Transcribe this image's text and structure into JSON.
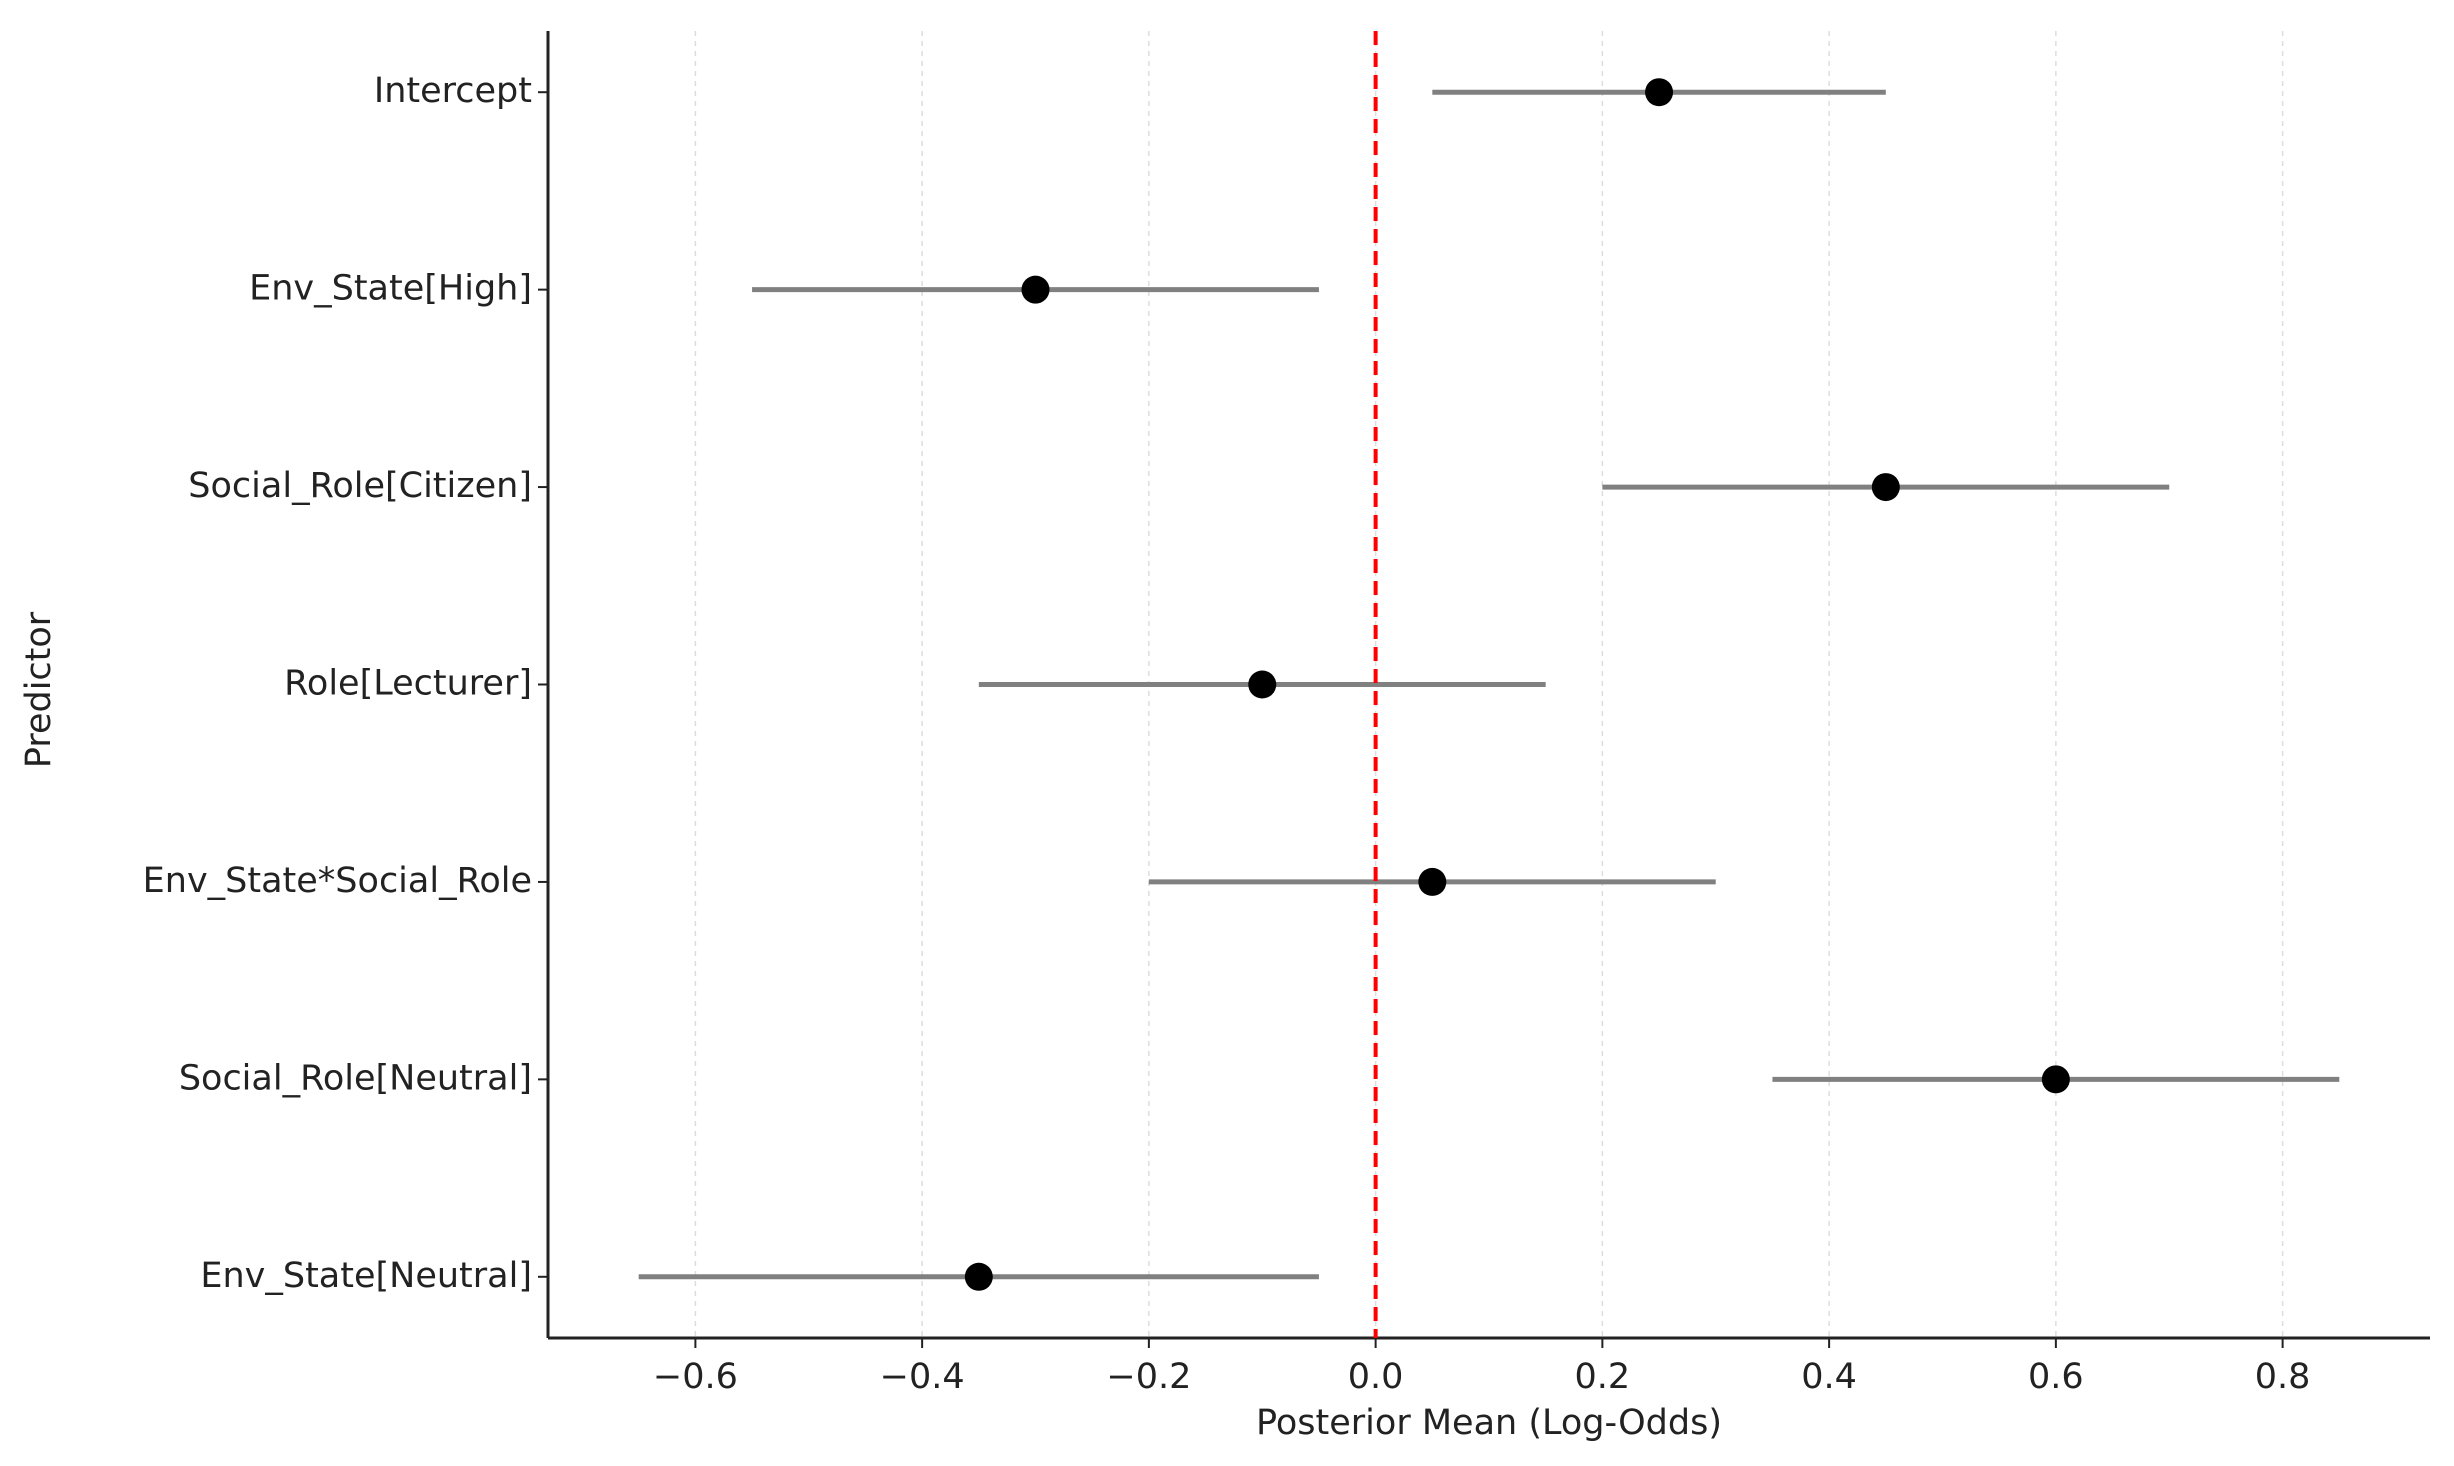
{
  "chart_data": {
    "type": "forest",
    "xlabel": "Posterior Mean (Log-Odds)",
    "ylabel": "Predictor",
    "categories": [
      "Intercept",
      "Env_State[High]",
      "Social_Role[Citizen]",
      "Role[Lecturer]",
      "Env_State*Social_Role",
      "Social_Role[Neutral]",
      "Env_State[Neutral]"
    ],
    "values": [
      0.25,
      -0.3,
      0.45,
      -0.1,
      0.05,
      0.6,
      -0.35
    ],
    "lower": [
      0.05,
      -0.55,
      0.2,
      -0.35,
      -0.2,
      0.35,
      -0.65
    ],
    "upper": [
      0.45,
      -0.05,
      0.7,
      0.15,
      0.3,
      0.85,
      -0.05
    ],
    "point_color": "#000000",
    "interval_color": "#808080",
    "ref_line": 0,
    "ref_color": "#ff0000",
    "xlim": [
      -0.73,
      0.93
    ],
    "xticks": [
      {
        "value": -0.6,
        "label": "−0.6"
      },
      {
        "value": -0.4,
        "label": "−0.4"
      },
      {
        "value": -0.2,
        "label": "−0.2"
      },
      {
        "value": 0,
        "label": "0.0"
      },
      0.2,
      0.4,
      0.6,
      0.8
    ],
    "grid": true
  }
}
